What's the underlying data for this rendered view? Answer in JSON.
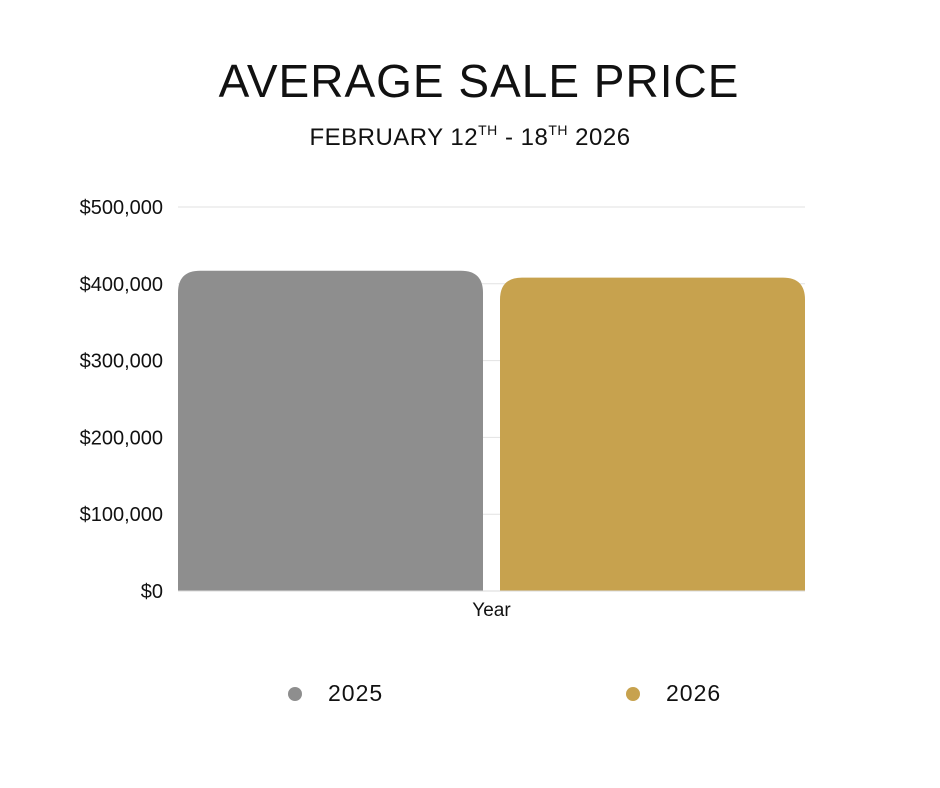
{
  "header": {
    "title": "AVERAGE SALE PRICE",
    "subtitle_month": "FEBRUARY 12",
    "subtitle_sup1": "TH",
    "subtitle_mid": " - 18",
    "subtitle_sup2": "TH",
    "subtitle_year": " 2026"
  },
  "chart_data": {
    "type": "bar",
    "categories": [
      "Year"
    ],
    "series": [
      {
        "name": "2025",
        "values": [
          417000
        ],
        "color": "#8e8e8e"
      },
      {
        "name": "2026",
        "values": [
          408000
        ],
        "color": "#c7a24e"
      }
    ],
    "title": "AVERAGE SALE PRICE",
    "subtitle": "FEBRUARY 12TH - 18TH 2026",
    "xlabel": "Year",
    "ylabel": "",
    "ylim": [
      0,
      500000
    ],
    "yticks": [
      0,
      100000,
      200000,
      300000,
      400000,
      500000
    ],
    "ytick_labels": [
      "$0",
      "$100,000",
      "$200,000",
      "$300,000",
      "$400,000",
      "$500,000"
    ],
    "grid": true,
    "legend_position": "bottom"
  }
}
